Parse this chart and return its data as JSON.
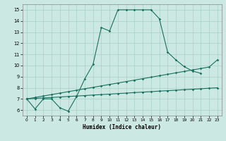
{
  "xlabel": "Humidex (Indice chaleur)",
  "xlim": [
    -0.5,
    23.5
  ],
  "ylim": [
    5.5,
    15.5
  ],
  "xtick_vals": [
    0,
    1,
    2,
    3,
    4,
    5,
    6,
    7,
    8,
    9,
    10,
    11,
    12,
    13,
    14,
    15,
    16,
    17,
    18,
    19,
    20,
    21,
    22,
    23
  ],
  "ytick_vals": [
    6,
    7,
    8,
    9,
    10,
    11,
    12,
    13,
    14,
    15
  ],
  "background_color": "#cce8e2",
  "grid_color": "#a8d0c8",
  "line_color": "#1a7060",
  "line1_x": [
    0,
    1,
    2,
    3,
    4,
    5,
    6,
    7,
    8,
    9,
    10,
    11,
    12,
    13,
    14,
    15,
    16,
    17,
    18,
    19,
    20,
    21
  ],
  "line1_y": [
    7.0,
    6.1,
    7.0,
    7.0,
    6.2,
    5.9,
    7.2,
    8.8,
    10.1,
    13.4,
    13.1,
    15.0,
    15.0,
    15.0,
    15.0,
    15.0,
    14.2,
    11.2,
    10.5,
    9.9,
    9.5,
    9.3
  ],
  "line2_x": [
    0,
    1,
    2,
    3,
    4,
    5,
    6,
    7,
    8,
    9,
    10,
    11,
    12,
    13,
    14,
    15,
    16,
    17,
    18,
    19,
    20,
    21,
    22,
    23
  ],
  "line2_y": [
    7.0,
    7.13,
    7.26,
    7.39,
    7.52,
    7.65,
    7.78,
    7.91,
    8.04,
    8.17,
    8.3,
    8.43,
    8.56,
    8.69,
    8.82,
    8.95,
    9.08,
    9.21,
    9.34,
    9.47,
    9.6,
    9.73,
    9.86,
    10.5
  ],
  "line3_x": [
    0,
    1,
    2,
    3,
    4,
    5,
    6,
    7,
    8,
    9,
    10,
    11,
    12,
    13,
    14,
    15,
    16,
    17,
    18,
    19,
    20,
    21,
    22,
    23
  ],
  "line3_y": [
    7.0,
    7.04,
    7.09,
    7.13,
    7.17,
    7.22,
    7.26,
    7.3,
    7.35,
    7.39,
    7.43,
    7.48,
    7.52,
    7.57,
    7.61,
    7.65,
    7.7,
    7.74,
    7.78,
    7.83,
    7.87,
    7.91,
    7.96,
    8.0
  ]
}
